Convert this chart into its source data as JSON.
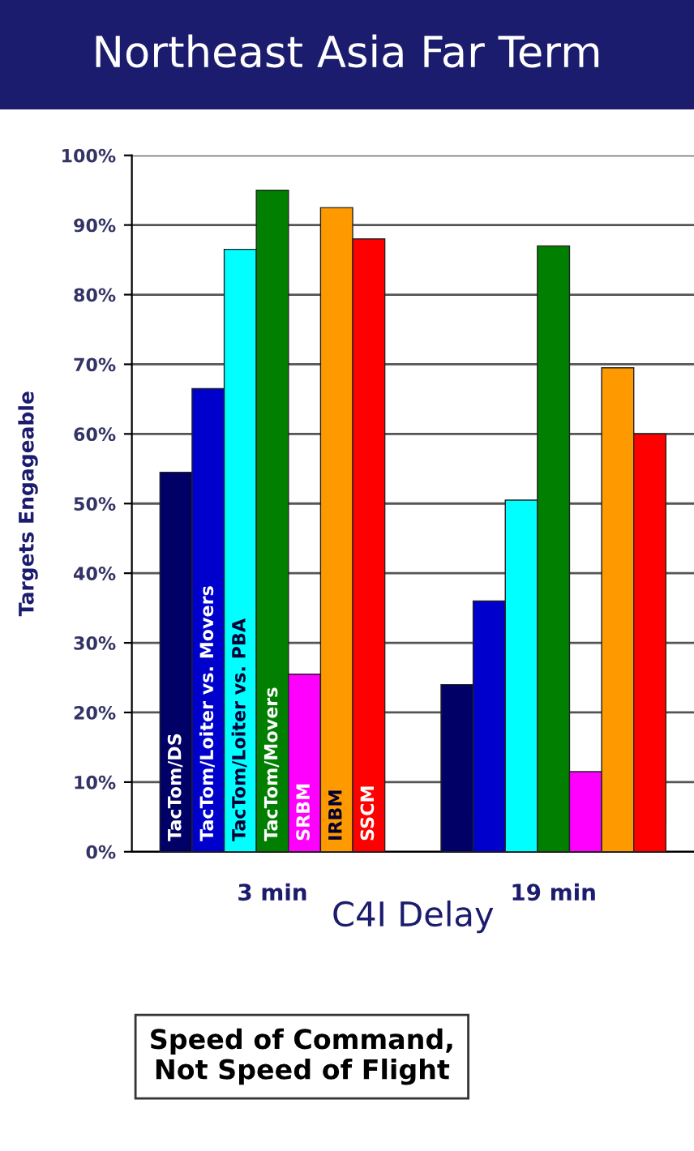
{
  "chart_data": {
    "type": "bar",
    "title": "Northeast Asia Far Term",
    "xlabel": "C4I Delay",
    "ylabel": "Targets Engageable",
    "categories": [
      "3 min",
      "19 min"
    ],
    "series": [
      {
        "name": "TacTom/DS",
        "color": "#000066",
        "values": [
          54.5,
          24
        ]
      },
      {
        "name": "TacTom/Loiter vs. Movers",
        "color": "#0000cc",
        "values": [
          66.5,
          36
        ]
      },
      {
        "name": "TacTom/Loiter vs. PBA",
        "color": "#00ffff",
        "values": [
          86.5,
          50.5
        ]
      },
      {
        "name": "TacTom/Movers",
        "color": "#007f00",
        "values": [
          95,
          87
        ]
      },
      {
        "name": "SRBM",
        "color": "#ff00ff",
        "values": [
          25.5,
          11.5
        ]
      },
      {
        "name": "IRBM",
        "color": "#ff9900",
        "values": [
          92.5,
          69.5
        ]
      },
      {
        "name": "SSCM",
        "color": "#ff0000",
        "values": [
          88,
          60
        ]
      }
    ],
    "ylim": [
      0,
      100
    ],
    "yticks": [
      {
        "value": 0,
        "label": "0%"
      },
      {
        "value": 10,
        "label": "10%"
      },
      {
        "value": 20,
        "label": "20%"
      },
      {
        "value": 30,
        "label": "30%"
      },
      {
        "value": 40,
        "label": "40%"
      },
      {
        "value": 50,
        "label": "50%"
      },
      {
        "value": 60,
        "label": "60%"
      },
      {
        "value": 70,
        "label": "70%"
      },
      {
        "value": 80,
        "label": "80%"
      },
      {
        "value": 90,
        "label": "90%"
      },
      {
        "value": 100,
        "label": "100%"
      }
    ],
    "grid": "y",
    "legend": false,
    "annotations": [
      "Speed of Command,\nNot Speed of Flight"
    ]
  }
}
